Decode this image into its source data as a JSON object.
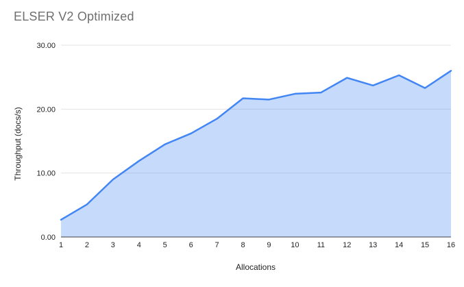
{
  "title": "ELSER V2 Optimized",
  "colors": {
    "line": "#4285f4",
    "area_fill": "#4285f4",
    "area_opacity": 0.3,
    "gridline": "#e3e3e3",
    "axis_line": "#3c3c3c",
    "title_text": "#6f6f6f",
    "tick_text": "#1f1f1f"
  },
  "chart_data": {
    "type": "area",
    "title": "ELSER V2 Optimized",
    "xlabel": "Allocations",
    "ylabel": "Throughput (docs/s)",
    "x": [
      1,
      2,
      3,
      4,
      5,
      6,
      7,
      8,
      9,
      10,
      11,
      12,
      13,
      14,
      15,
      16
    ],
    "values": [
      2.7,
      5.1,
      9.0,
      11.9,
      14.5,
      16.2,
      18.5,
      21.7,
      21.5,
      22.4,
      22.6,
      24.9,
      23.7,
      25.3,
      23.3,
      26.0
    ],
    "ylim": [
      0,
      30
    ],
    "yticks": [
      0,
      10,
      20,
      30
    ],
    "ytick_labels": [
      "0.00",
      "10.00",
      "20.00",
      "30.00"
    ],
    "grid": true,
    "legend": "none"
  }
}
